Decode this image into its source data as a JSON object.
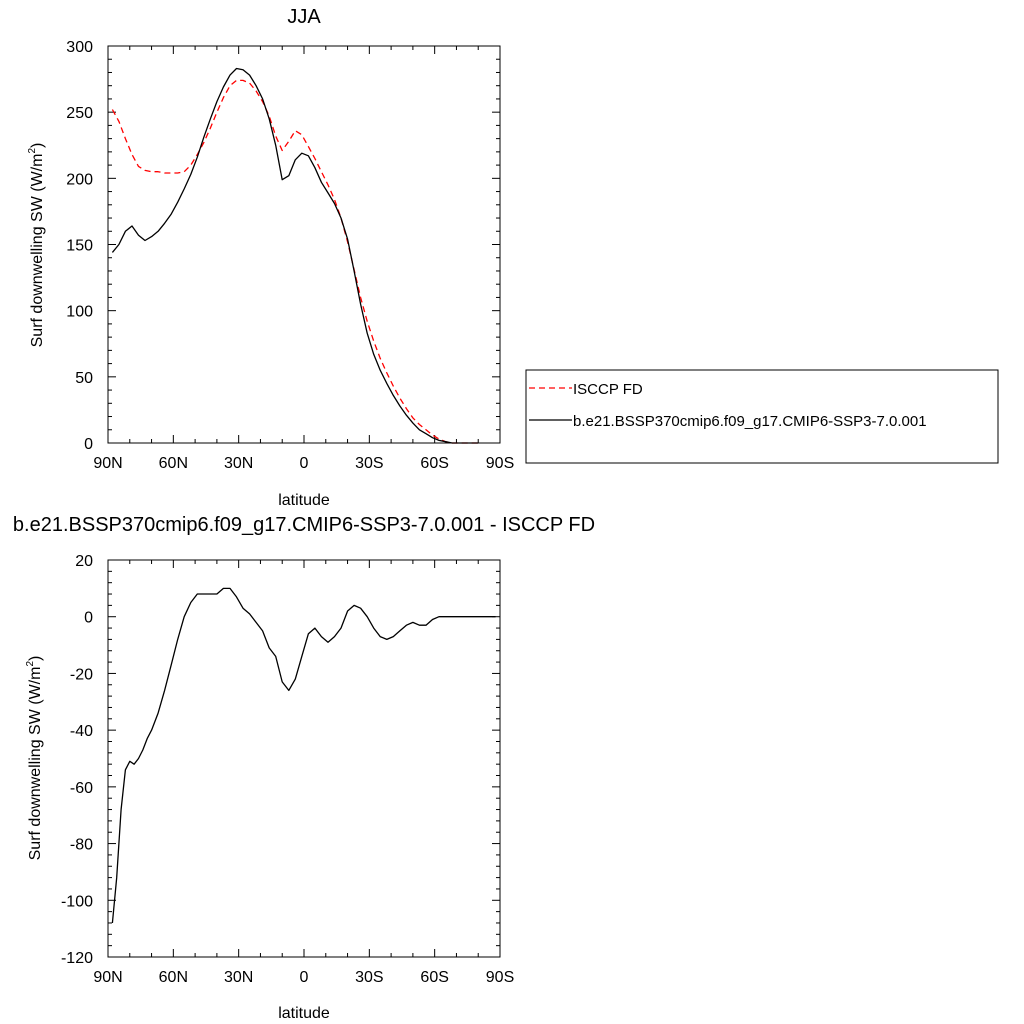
{
  "chart_data": [
    {
      "type": "line",
      "title": "JJA",
      "xlabel": "latitude",
      "ylabel": "Surf downwelling SW (W/m",
      "ylabel_sup": "2",
      "ylabel_close": ")",
      "xlim": [
        90,
        -90
      ],
      "ylim": [
        0,
        300
      ],
      "xticks": [
        {
          "v": 90,
          "label": "90N"
        },
        {
          "v": 60,
          "label": "60N"
        },
        {
          "v": 30,
          "label": "30N"
        },
        {
          "v": 0,
          "label": "0"
        },
        {
          "v": -30,
          "label": "30S"
        },
        {
          "v": -60,
          "label": "60S"
        },
        {
          "v": -90,
          "label": "90S"
        }
      ],
      "yticks": [
        0,
        50,
        100,
        150,
        200,
        250,
        300
      ],
      "legend_position": "right",
      "series": [
        {
          "name": "ISCCP FD",
          "color": "#ff0000",
          "style": "dashed",
          "x": [
            88,
            85,
            82,
            79,
            76,
            73,
            70,
            67,
            64,
            61,
            58,
            55,
            52,
            49,
            46,
            43,
            40,
            37,
            34,
            31,
            28,
            25,
            22,
            19,
            16,
            13,
            10,
            7,
            4,
            1,
            -2,
            -5,
            -8,
            -11,
            -14,
            -17,
            -20,
            -23,
            -26,
            -29,
            -32,
            -35,
            -38,
            -41,
            -44,
            -47,
            -50,
            -53,
            -56,
            -59,
            -62,
            -65,
            -68,
            -71,
            -74,
            -77,
            -80
          ],
          "y": [
            252,
            243,
            230,
            218,
            209,
            206,
            205,
            205,
            204,
            204,
            204,
            205,
            210,
            218,
            227,
            238,
            250,
            261,
            270,
            274,
            274,
            272,
            266,
            258,
            247,
            232,
            221,
            228,
            236,
            233,
            224,
            215,
            205,
            195,
            184,
            170,
            152,
            131,
            110,
            92,
            77,
            64,
            53,
            43,
            34,
            26,
            19,
            14,
            10,
            6,
            3,
            1,
            0,
            0,
            0,
            0,
            0
          ]
        },
        {
          "name": "b.e21.BSSP370cmip6.f09_g17.CMIP6-SSP3-7.0.001",
          "color": "#000000",
          "style": "solid",
          "x": [
            88,
            85,
            82,
            79,
            76,
            73,
            70,
            67,
            64,
            61,
            58,
            55,
            52,
            49,
            46,
            43,
            40,
            37,
            34,
            31,
            28,
            25,
            22,
            19,
            16,
            13,
            10,
            7,
            4,
            1,
            -2,
            -5,
            -8,
            -11,
            -14,
            -17,
            -20,
            -23,
            -26,
            -29,
            -32,
            -35,
            -38,
            -41,
            -44,
            -47,
            -50,
            -53,
            -56,
            -59,
            -62,
            -65,
            -68,
            -71,
            -74,
            -77,
            -80
          ],
          "y": [
            144,
            150,
            160,
            164,
            157,
            153,
            156,
            160,
            166,
            173,
            182,
            192,
            203,
            216,
            231,
            245,
            258,
            269,
            278,
            283,
            282,
            278,
            270,
            260,
            245,
            225,
            199,
            202,
            214,
            219,
            217,
            208,
            197,
            189,
            181,
            170,
            154,
            130,
            105,
            83,
            67,
            55,
            45,
            36,
            28,
            21,
            15,
            10,
            7,
            4,
            2,
            1,
            0,
            0,
            0,
            0,
            0
          ]
        }
      ]
    },
    {
      "type": "line",
      "title": "b.e21.BSSP370cmip6.f09_g17.CMIP6-SSP3-7.0.001 - ISCCP FD",
      "xlabel": "latitude",
      "ylabel": "Surf downwelling SW (W/m",
      "ylabel_sup": "2",
      "ylabel_close": ")",
      "xlim": [
        90,
        -90
      ],
      "ylim": [
        -120,
        20
      ],
      "xticks": [
        {
          "v": 90,
          "label": "90N"
        },
        {
          "v": 60,
          "label": "60N"
        },
        {
          "v": 30,
          "label": "30N"
        },
        {
          "v": 0,
          "label": "0"
        },
        {
          "v": -30,
          "label": "30S"
        },
        {
          "v": -60,
          "label": "60S"
        },
        {
          "v": -90,
          "label": "90S"
        }
      ],
      "yticks": [
        -120,
        -100,
        -80,
        -60,
        -40,
        -20,
        0,
        20
      ],
      "series": [
        {
          "color": "#000000",
          "style": "solid",
          "x": [
            88,
            86,
            84,
            82,
            80,
            78,
            76,
            74,
            72,
            70,
            67,
            64,
            61,
            58,
            55,
            52,
            49,
            46,
            43,
            40,
            37,
            34,
            31,
            28,
            25,
            22,
            19,
            16,
            13,
            10,
            7,
            4,
            1,
            -2,
            -5,
            -8,
            -11,
            -14,
            -17,
            -20,
            -23,
            -26,
            -29,
            -32,
            -35,
            -38,
            -41,
            -44,
            -47,
            -50,
            -53,
            -56,
            -59,
            -62,
            -65,
            -68,
            -71,
            -74,
            -77,
            -80,
            -83,
            -86,
            -88
          ],
          "y": [
            -108,
            -92,
            -68,
            -54,
            -51,
            -52,
            -50,
            -47,
            -43,
            -40,
            -34,
            -26,
            -17,
            -8,
            0,
            5,
            8,
            8,
            8,
            8,
            10,
            10,
            7,
            3,
            1,
            -2,
            -5,
            -11,
            -14,
            -23,
            -26,
            -22,
            -14,
            -6,
            -4,
            -7,
            -9,
            -7,
            -4,
            2,
            4,
            3,
            0,
            -4,
            -7,
            -8,
            -7,
            -5,
            -3,
            -2,
            -3,
            -3,
            -1,
            0,
            0,
            0,
            0,
            0,
            0,
            0,
            0,
            0,
            0
          ]
        }
      ]
    }
  ]
}
